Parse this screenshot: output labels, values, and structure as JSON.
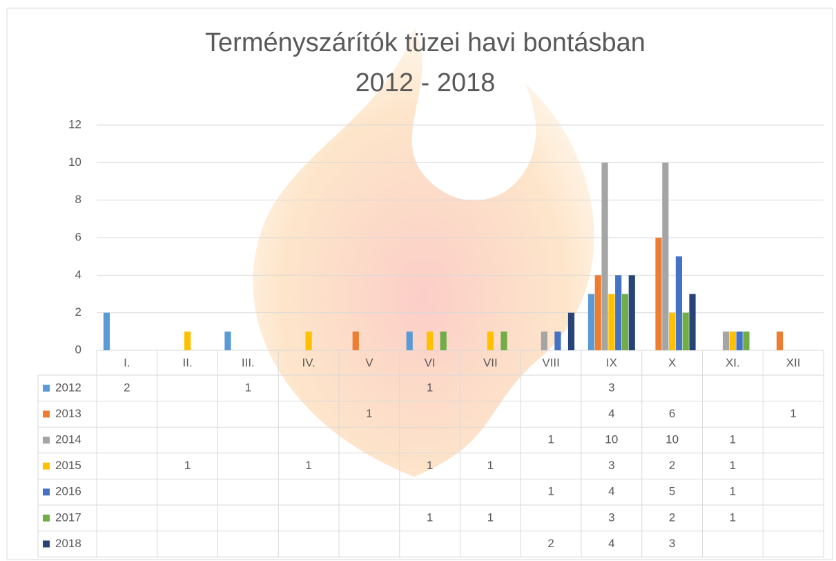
{
  "chart_data": {
    "type": "bar",
    "title": "Terményszárítók tüzei havi bontásban",
    "subtitle": "2012 - 2018",
    "categories": [
      "I.",
      "II.",
      "III.",
      "IV.",
      "V",
      "VI",
      "VII",
      "VIII",
      "IX",
      "X",
      "XI.",
      "XII"
    ],
    "series": [
      {
        "name": "2012",
        "color": "#5b9bd5",
        "values": [
          2,
          null,
          1,
          null,
          null,
          1,
          null,
          null,
          3,
          null,
          null,
          null
        ]
      },
      {
        "name": "2013",
        "color": "#ed7d31",
        "values": [
          null,
          null,
          null,
          null,
          1,
          null,
          null,
          null,
          4,
          6,
          null,
          1
        ]
      },
      {
        "name": "2014",
        "color": "#a5a5a5",
        "values": [
          null,
          null,
          null,
          null,
          null,
          null,
          null,
          1,
          10,
          10,
          1,
          null
        ]
      },
      {
        "name": "2015",
        "color": "#ffc000",
        "values": [
          null,
          1,
          null,
          1,
          null,
          1,
          1,
          null,
          3,
          2,
          1,
          null
        ]
      },
      {
        "name": "2016",
        "color": "#4472c4",
        "values": [
          null,
          null,
          null,
          null,
          null,
          null,
          null,
          1,
          4,
          5,
          1,
          null
        ]
      },
      {
        "name": "2017",
        "color": "#70ad47",
        "values": [
          null,
          null,
          null,
          null,
          null,
          1,
          1,
          null,
          3,
          2,
          1,
          null
        ]
      },
      {
        "name": "2018",
        "color": "#264478",
        "values": [
          null,
          null,
          null,
          null,
          null,
          null,
          null,
          2,
          4,
          3,
          null,
          null
        ]
      }
    ],
    "ylim": [
      0,
      12
    ],
    "yticks": [
      0,
      2,
      4,
      6,
      8,
      10,
      12
    ],
    "grid": true,
    "data_table": true
  }
}
